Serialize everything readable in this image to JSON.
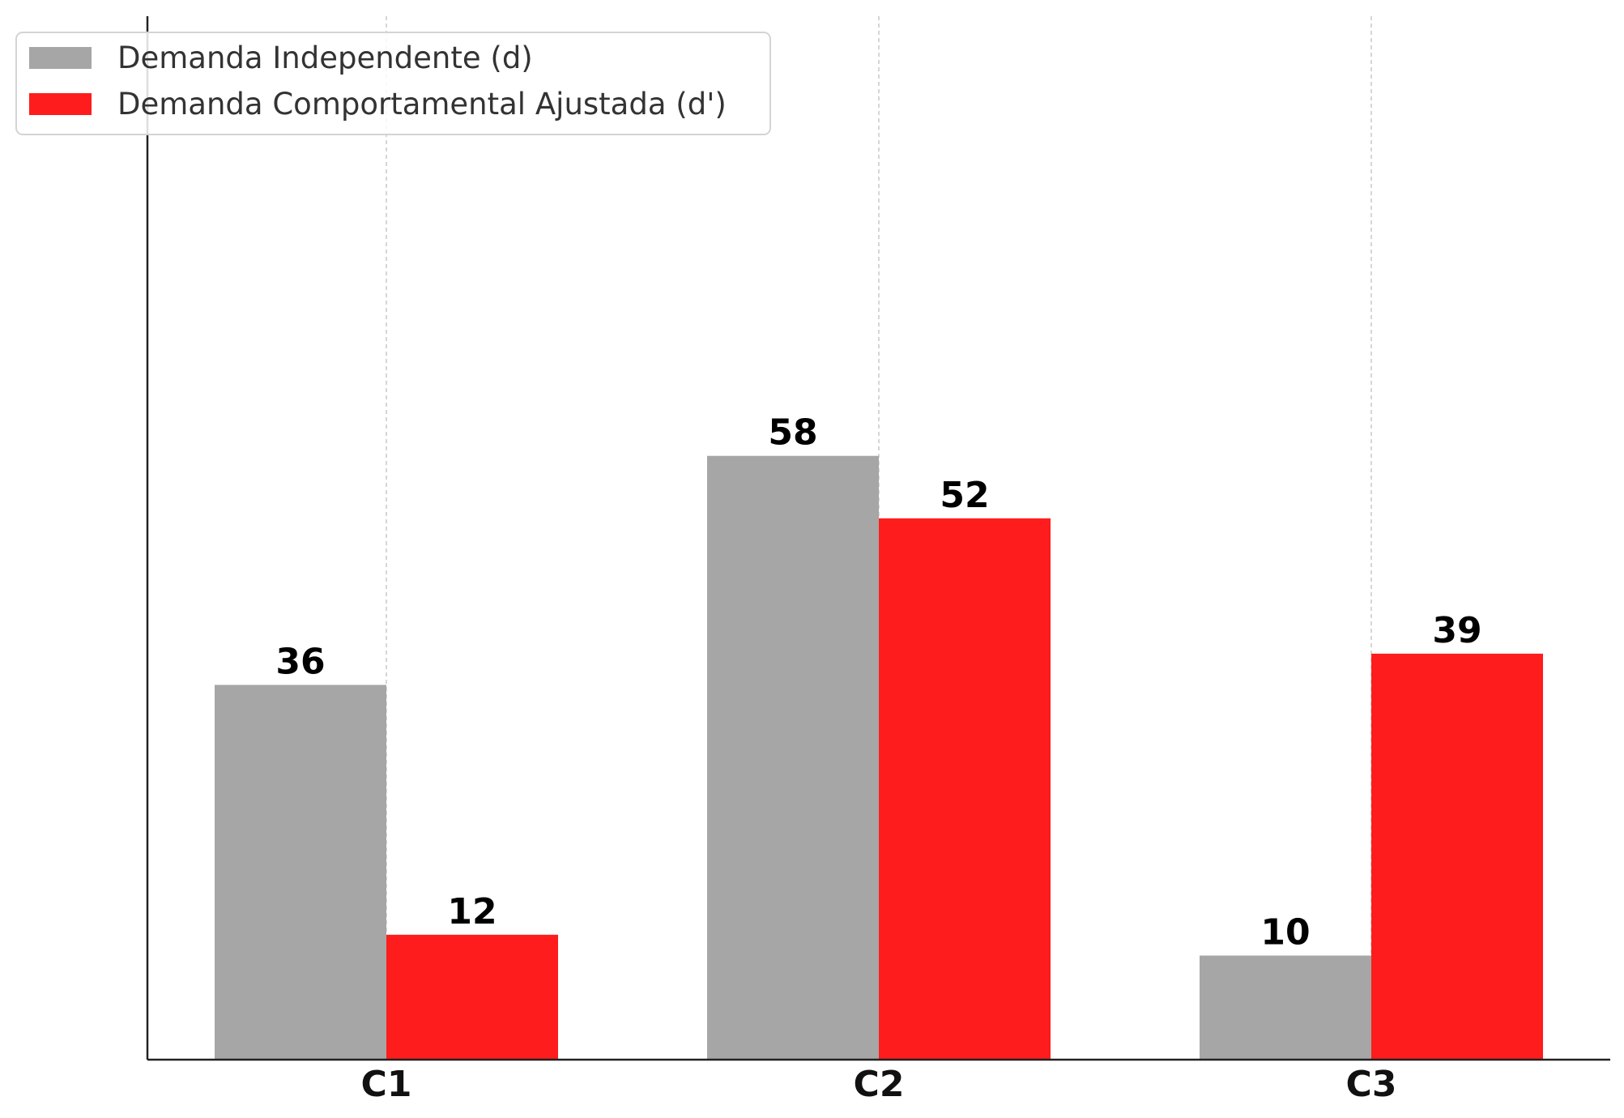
{
  "chart_data": {
    "type": "bar",
    "title": "",
    "xlabel": "",
    "ylabel": "",
    "categories": [
      "C1",
      "C2",
      "C3"
    ],
    "series": [
      {
        "name": "Demanda Independente (d)",
        "values": [
          36,
          58,
          10
        ],
        "color": "#a6a6a6"
      },
      {
        "name": "Demanda Comportamental Ajustada (d')",
        "values": [
          12,
          52,
          39
        ],
        "color": "#ff1c1c"
      }
    ],
    "ylim": [
      0,
      100
    ],
    "grid": "x-dashed",
    "legend": "top-left",
    "data_labels": true
  }
}
